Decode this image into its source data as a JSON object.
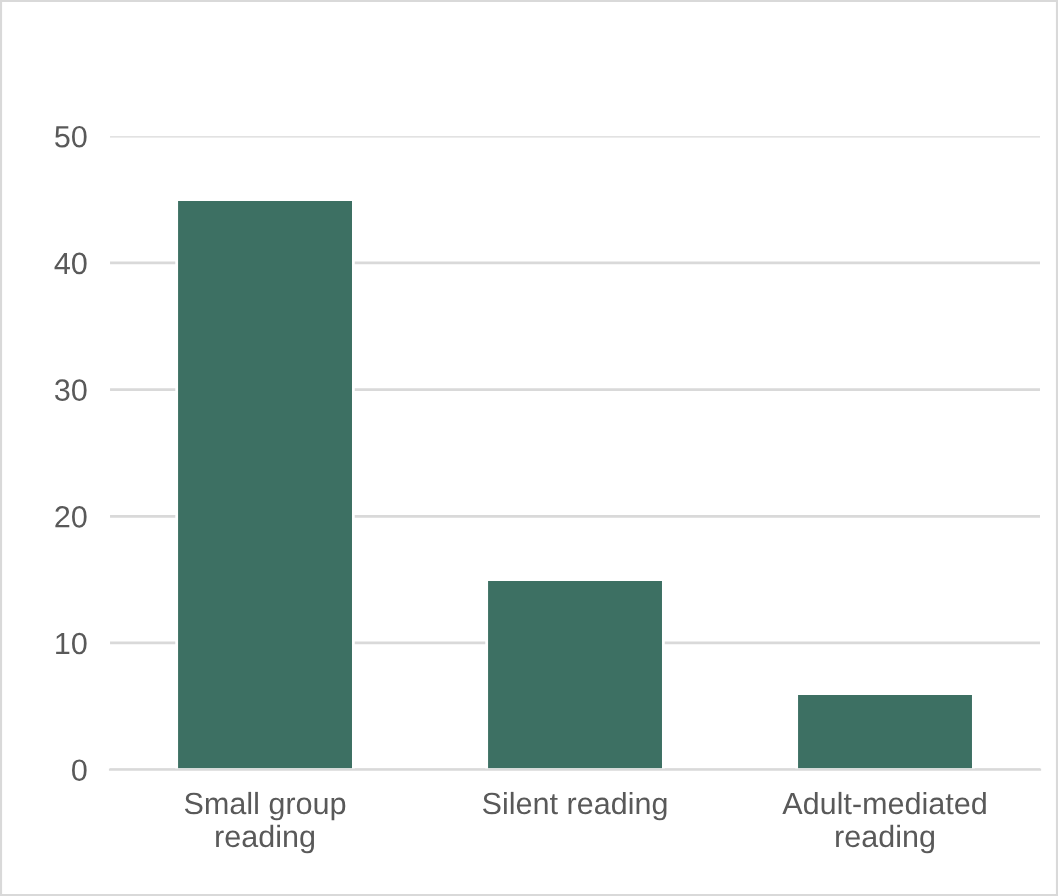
{
  "chart_data": {
    "type": "bar",
    "categories": [
      "Small group\nreading",
      "Silent reading",
      "Adult-mediated\nreading"
    ],
    "values": [
      45,
      15,
      6
    ],
    "color": "#3d7063",
    "ylim": [
      0,
      50
    ],
    "yticks": [
      0,
      10,
      20,
      30,
      40,
      50
    ],
    "grid": "y"
  }
}
